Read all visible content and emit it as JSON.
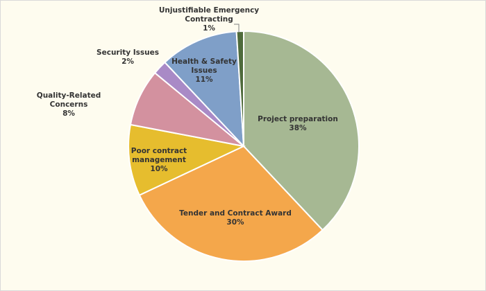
{
  "chart_data": {
    "type": "pie",
    "title": "",
    "categories": [
      "Project preparation",
      "Tender and Contract Award",
      "Poor contract management",
      "Quality-Related Concerns",
      "Security Issues",
      "Health & Safety Issues",
      "Unjustifiable Emergency Contracting"
    ],
    "values": [
      38,
      30,
      10,
      8,
      2,
      11,
      1
    ],
    "value_labels": [
      "38%",
      "30%",
      "10%",
      "8%",
      "2%",
      "11%",
      "1%"
    ],
    "colors": [
      "#a6b893",
      "#f4a74b",
      "#e6bd2e",
      "#d3919f",
      "#a98ac6",
      "#7f9fc8",
      "#4f6b3c"
    ],
    "start_angle_deg": 0,
    "direction": "clockwise",
    "legend": "none",
    "data_labels": "category and percentage"
  }
}
